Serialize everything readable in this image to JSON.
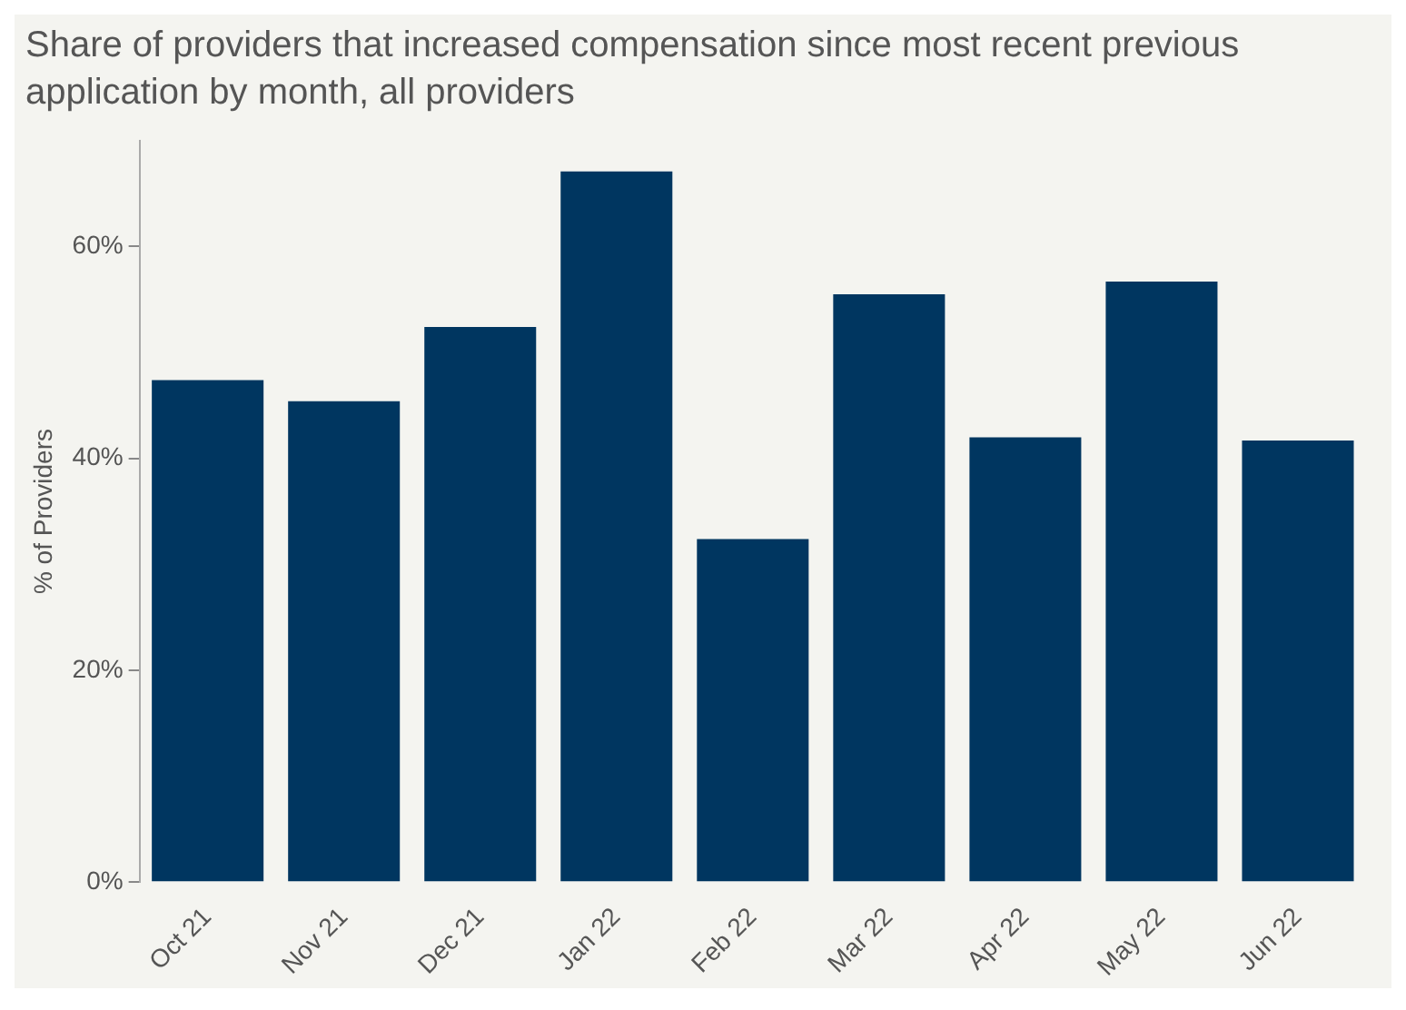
{
  "chart_data": {
    "type": "bar",
    "title": "Share of providers that increased compensation since most recent previous application by month, all providers",
    "ylabel": "% of Providers",
    "categories": [
      "Oct 21",
      "Nov 21",
      "Dec 21",
      "Jan 22",
      "Feb 22",
      "Mar 22",
      "Apr 22",
      "May 22",
      "Jun 22"
    ],
    "values": [
      47.4,
      45.4,
      52.4,
      67.1,
      32.4,
      55.5,
      42.0,
      56.7,
      41.7
    ],
    "color": "#003660",
    "ylim": [
      0,
      70
    ],
    "yticks": [
      {
        "value": 0,
        "label": "0%"
      },
      {
        "value": 20,
        "label": "20%"
      },
      {
        "value": 40,
        "label": "40%"
      },
      {
        "value": 60,
        "label": "60%"
      }
    ],
    "grid": false,
    "legend": false
  }
}
